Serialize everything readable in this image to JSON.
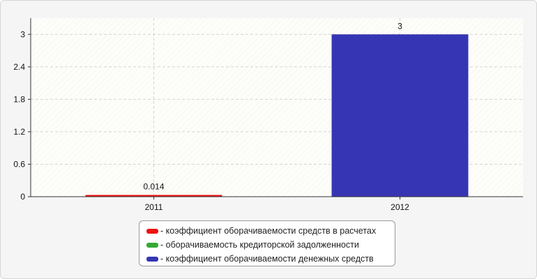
{
  "chart_data": {
    "type": "bar",
    "categories": [
      "2011",
      "2012"
    ],
    "series": [
      {
        "name": "коэффициент оборачиваемости средств в расчетах",
        "color": "#ee1111",
        "values": [
          0.014,
          null
        ]
      },
      {
        "name": "оборачиваемость кредиторской задолженности",
        "color": "#33aa33",
        "values": [
          null,
          null
        ]
      },
      {
        "name": "коэффициент оборачиваемости денежных средств",
        "color": "#3636b4",
        "values": [
          null,
          3
        ]
      }
    ],
    "data_labels": [
      "0.014",
      "3"
    ],
    "yticks": [
      "0",
      "0.6",
      "1.2",
      "1.8",
      "2.4",
      "3"
    ],
    "ylim": [
      0,
      3.3
    ],
    "grid": true,
    "legend_position": "bottom-center",
    "title": "",
    "xlabel": "",
    "ylabel": ""
  },
  "legend": {
    "items": [
      {
        "label": "- коэффициент оборачиваемости средств в расчетах",
        "color": "#ee1111"
      },
      {
        "label": "- оборачиваемость кредиторской задолженности",
        "color": "#33aa33"
      },
      {
        "label": "- коэффициент оборачиваемости денежных средств",
        "color": "#3636b4"
      }
    ]
  }
}
